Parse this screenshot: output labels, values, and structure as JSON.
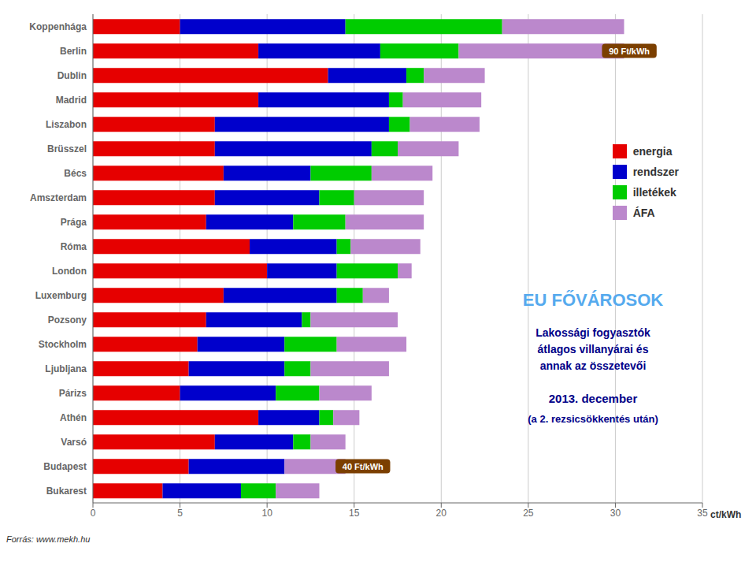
{
  "chart_data": {
    "type": "bar",
    "orientation": "horizontal",
    "stacked": true,
    "title": "EU FŐVÁROSOK",
    "subtitle": [
      "Lakossági fogyasztók\nátlagos villanyárai és\nannak az összetevői",
      "2013. december",
      "(a 2. rezsicsökkentés után)"
    ],
    "source": "Forrás: www.mekh.hu",
    "x_label": "ct/kWh",
    "categories": [
      "Koppenhága",
      "Berlin",
      "Dublin",
      "Madrid",
      "Liszabon",
      "Brüsszel",
      "Bécs",
      "Amszterdam",
      "Prága",
      "Róma",
      "London",
      "Luxemburg",
      "Pozsony",
      "Stockholm",
      "Ljubljana",
      "Párizs",
      "Athén",
      "Varsó",
      "Budapest",
      "Bukarest"
    ],
    "series": [
      {
        "name": "energia",
        "color": "#e60000",
        "values": [
          5.0,
          9.5,
          13.5,
          9.5,
          7.0,
          7.0,
          7.5,
          7.0,
          6.5,
          9.0,
          10.0,
          7.5,
          6.5,
          6.0,
          5.5,
          5.0,
          9.5,
          7.0,
          5.5,
          4.0
        ]
      },
      {
        "name": "rendszer",
        "color": "#0000cc",
        "values": [
          9.5,
          7.0,
          4.5,
          7.5,
          10.0,
          9.0,
          5.0,
          6.0,
          5.0,
          5.0,
          4.0,
          6.5,
          5.5,
          5.0,
          5.5,
          5.5,
          3.5,
          4.5,
          5.5,
          4.5
        ]
      },
      {
        "name": "illetékek",
        "color": "#00cc00",
        "values": [
          9.0,
          4.5,
          1.0,
          0.8,
          1.2,
          1.5,
          3.5,
          2.0,
          3.0,
          0.8,
          3.5,
          1.5,
          0.5,
          3.0,
          1.5,
          2.5,
          0.8,
          1.0,
          0.0,
          2.0
        ]
      },
      {
        "name": "ÁFA",
        "color": "#bb88cc",
        "values": [
          7.0,
          9.5,
          3.5,
          4.5,
          4.0,
          3.5,
          3.5,
          4.0,
          4.5,
          4.0,
          0.8,
          1.5,
          5.0,
          4.0,
          4.5,
          3.0,
          1.5,
          2.0,
          3.5,
          2.5
        ]
      }
    ],
    "xlim": [
      0,
      35
    ],
    "xticks": [
      0,
      5,
      10,
      15,
      20,
      25,
      30,
      35
    ],
    "grid": true,
    "legend": "right",
    "annotations": [
      {
        "text": "40 Ft/kWh",
        "x": 15.5,
        "y": "Budapest",
        "color": "#7B3F00"
      },
      {
        "text": "90 Ft/kWh",
        "x": 30.8,
        "y": "Berlin",
        "color": "#7B3F00"
      }
    ]
  }
}
